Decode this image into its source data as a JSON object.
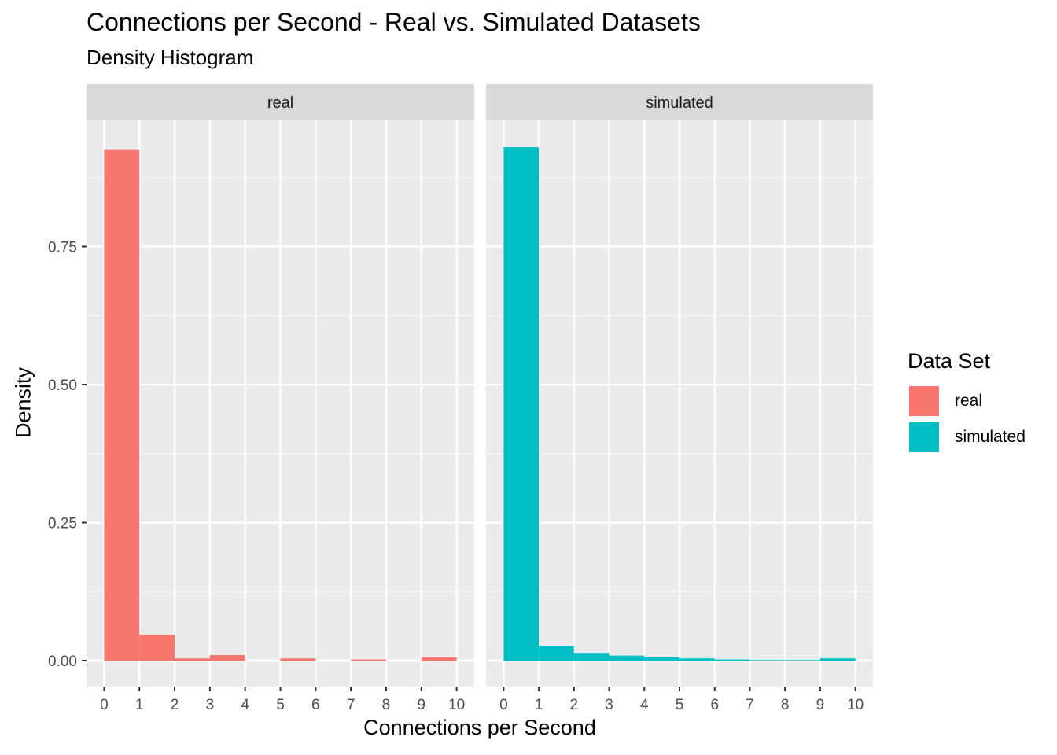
{
  "chart_data": {
    "type": "bar",
    "title": "Connections per Second - Real vs. Simulated Datasets",
    "subtitle": "Density Histogram",
    "xlabel": "Connections per Second",
    "ylabel": "Density",
    "xlim": [
      -0.5,
      10.5
    ],
    "ylim": [
      -0.047,
      0.98
    ],
    "x_ticks": [
      0,
      1,
      2,
      3,
      4,
      5,
      6,
      7,
      8,
      9,
      10
    ],
    "y_ticks": [
      0,
      0.25,
      0.5,
      0.75
    ],
    "y_tick_labels": [
      "0.00",
      "0.25",
      "0.50",
      "0.75"
    ],
    "bin_edges": [
      0,
      1,
      2,
      3,
      4,
      5,
      6,
      7,
      8,
      9,
      10
    ],
    "legend": {
      "title": "Data Set",
      "position": "right"
    },
    "series": [
      {
        "name": "real",
        "color": "#F8766D",
        "values": [
          0.925,
          0.047,
          0.004,
          0.01,
          0.0,
          0.004,
          0.0,
          0.002,
          0.0,
          0.006
        ]
      },
      {
        "name": "simulated",
        "color": "#00BFC4",
        "values": [
          0.93,
          0.027,
          0.014,
          0.009,
          0.006,
          0.004,
          0.002,
          0.001,
          0.001,
          0.004
        ]
      }
    ]
  }
}
